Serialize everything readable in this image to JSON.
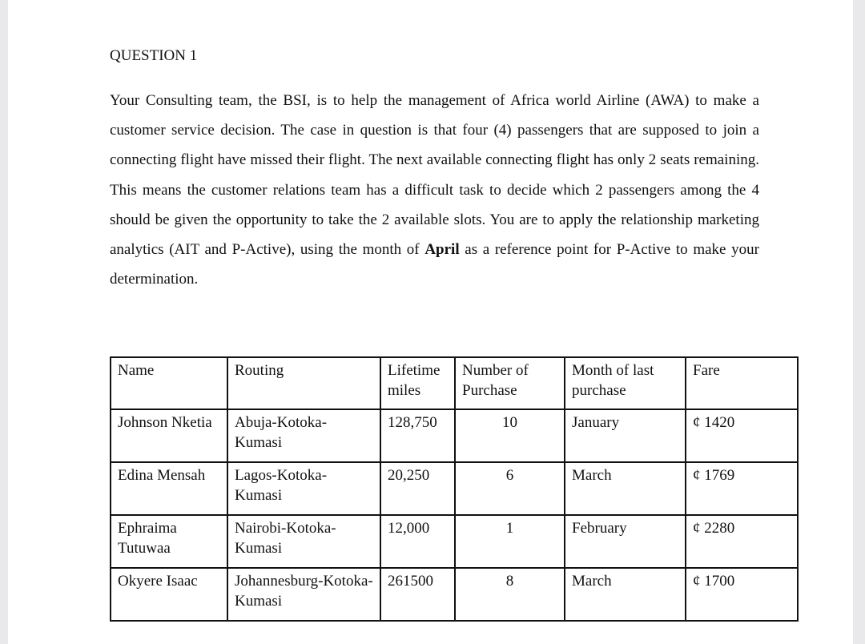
{
  "title": "QUESTION 1",
  "paragraph": {
    "before_bold": "Your Consulting team, the BSI, is to help the management of Africa world Airline (AWA) to make a customer service decision. The case in question is that four (4) passengers that are supposed to join a connecting flight have missed their flight. The next available connecting flight has only 2 seats remaining. This means the customer relations team has a difficult task to decide which 2 passengers among the 4 should be given the opportunity to take the 2 available slots. You are to apply the relationship marketing analytics (AIT and P-Active), using the month of ",
    "bold": "April",
    "after_bold": " as a reference point for P-Active to make your determination."
  },
  "table": {
    "headers": [
      "Name",
      "Routing",
      "Lifetime miles",
      "Number of Purchase",
      "Month of last purchase",
      "Fare"
    ],
    "rows": [
      [
        "Johnson Nketia",
        "Abuja-Kotoka-Kumasi",
        "128,750",
        "10",
        "January",
        "¢ 1420"
      ],
      [
        "Edina Mensah",
        "Lagos-Kotoka-Kumasi",
        "20,250",
        "6",
        "March",
        "¢ 1769"
      ],
      [
        "Ephraima Tutuwaa",
        "Nairobi-Kotoka-Kumasi",
        "12,000",
        "1",
        "February",
        "¢ 2280"
      ],
      [
        "Okyere Isaac",
        "Johannesburg-Kotoka-Kumasi",
        "261500",
        "8",
        "March",
        "¢ 1700"
      ]
    ]
  }
}
